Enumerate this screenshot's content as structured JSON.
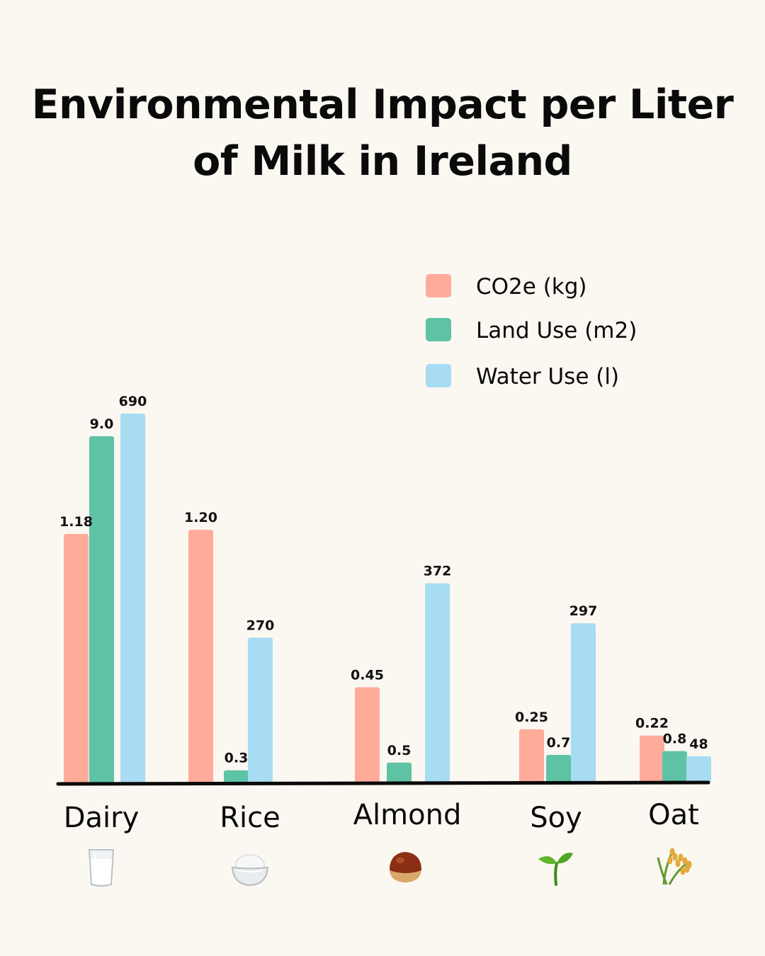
{
  "chart_data": {
    "type": "bar",
    "title": "Environmental Impact per Liter of Milk in Ireland",
    "categories": [
      "Dairy",
      "Rice",
      "Almond",
      "Soy",
      "Oat"
    ],
    "category_icons": [
      "milk-glass-icon",
      "rice-bowl-icon",
      "chestnut-icon",
      "seedling-icon",
      "grain-sheaf-icon"
    ],
    "series": [
      {
        "name": "CO2e (kg)",
        "color": "#ffab9a",
        "values": [
          1.18,
          1.2,
          0.45,
          0.25,
          0.22
        ],
        "labels": [
          "1.18",
          "1.20",
          "0.45",
          "0.25",
          "0.22"
        ]
      },
      {
        "name": "Land Use (m2)",
        "color": "#5ec3a5",
        "values": [
          9.0,
          0.3,
          0.5,
          0.7,
          0.8
        ],
        "labels": [
          "9.0",
          "0.3",
          "0.5",
          "0.7",
          "0.8"
        ]
      },
      {
        "name": "Water Use (l)",
        "color": "#a8dcf2",
        "values": [
          690,
          270,
          372,
          297,
          48
        ],
        "labels": [
          "690",
          "270",
          "372",
          "297",
          "48"
        ]
      }
    ],
    "legend_position": "top-right",
    "grid": false,
    "axis_color": "#0a0a0a"
  }
}
